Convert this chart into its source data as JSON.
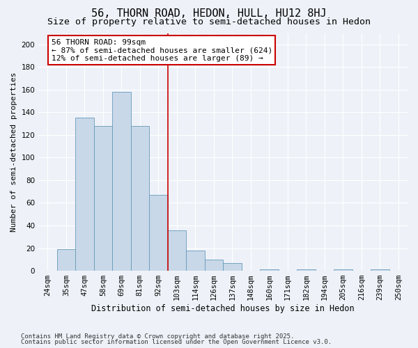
{
  "title1": "56, THORN ROAD, HEDON, HULL, HU12 8HJ",
  "title2": "Size of property relative to semi-detached houses in Hedon",
  "xlabel": "Distribution of semi-detached houses by size in Hedon",
  "ylabel": "Number of semi-detached properties",
  "bin_labels": [
    "24sqm",
    "35sqm",
    "47sqm",
    "58sqm",
    "69sqm",
    "81sqm",
    "92sqm",
    "103sqm",
    "114sqm",
    "126sqm",
    "137sqm",
    "148sqm",
    "160sqm",
    "171sqm",
    "182sqm",
    "194sqm",
    "205sqm",
    "216sqm",
    "239sqm",
    "250sqm"
  ],
  "n_bins": 20,
  "bar_heights": [
    0,
    19,
    135,
    128,
    158,
    128,
    67,
    36,
    18,
    10,
    7,
    0,
    1,
    0,
    1,
    0,
    1,
    0,
    1,
    0
  ],
  "bar_color": "#c8d8e8",
  "bar_edge_color": "#6699bb",
  "background_color": "#eef2f8",
  "grid_color": "#ffffff",
  "vline_index": 7,
  "vline_color": "#cc0000",
  "ylim_max": 210,
  "yticks": [
    0,
    20,
    40,
    60,
    80,
    100,
    120,
    140,
    160,
    180,
    200
  ],
  "annotation_title": "56 THORN ROAD: 99sqm",
  "annotation_line1": "← 87% of semi-detached houses are smaller (624)",
  "annotation_line2": "12% of semi-detached houses are larger (89) →",
  "annotation_box_color": "#ffffff",
  "annotation_border_color": "#cc0000",
  "footnote1": "Contains HM Land Registry data © Crown copyright and database right 2025.",
  "footnote2": "Contains public sector information licensed under the Open Government Licence v3.0.",
  "title1_fontsize": 11,
  "title2_fontsize": 9.5,
  "xlabel_fontsize": 8.5,
  "ylabel_fontsize": 8,
  "tick_fontsize": 7.5,
  "annotation_fontsize": 8,
  "footnote_fontsize": 6.5
}
